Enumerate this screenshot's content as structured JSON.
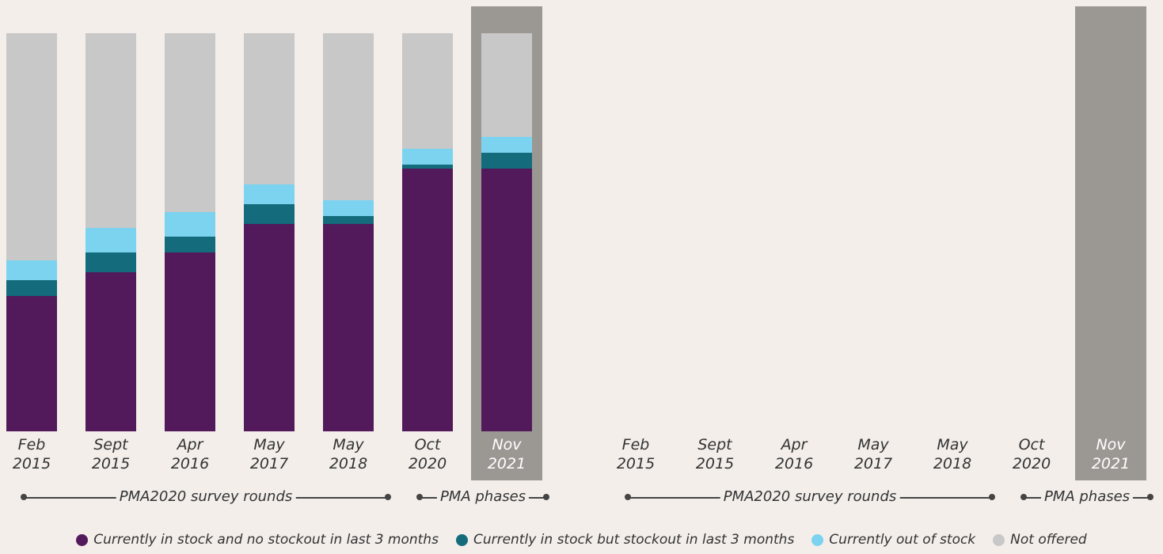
{
  "chart_data": [
    {
      "type": "bar",
      "stacked": true,
      "categories": [
        "Feb 2015",
        "Sept 2015",
        "Apr 2016",
        "May 2017",
        "May 2018",
        "Oct 2020",
        "Nov 2021"
      ],
      "series": [
        {
          "name": "Currently in stock and no stockout in last 3 months",
          "color": "#521a5a",
          "values": [
            34,
            40,
            45,
            52,
            52,
            66,
            66
          ]
        },
        {
          "name": "Currently in stock but stockout in last 3 months",
          "color": "#136b7c",
          "values": [
            4,
            5,
            4,
            5,
            2,
            1,
            4
          ]
        },
        {
          "name": "Currently out of stock",
          "color": "#7bd3f0",
          "values": [
            5,
            6,
            6,
            5,
            4,
            4,
            4
          ]
        },
        {
          "name": "Not offered",
          "color": "#c8c8c8",
          "values": [
            57,
            49,
            45,
            38,
            42,
            29,
            26
          ]
        }
      ],
      "ylim": [
        0,
        100
      ],
      "highlight_category": "Nov 2021",
      "highlight_color": "#9b9894",
      "groups": [
        {
          "label": "PMA2020 survey rounds",
          "span": [
            "Feb 2015",
            "May 2018"
          ]
        },
        {
          "label": "PMA phases",
          "span": [
            "Oct 2020",
            "Nov 2021"
          ]
        }
      ]
    },
    {
      "type": "bar",
      "stacked": true,
      "categories": [
        "Feb 2015",
        "Sept 2015",
        "Apr 2016",
        "May 2017",
        "May 2018",
        "Oct 2020",
        "Nov 2021"
      ],
      "series": [],
      "ylim": [
        0,
        100
      ],
      "highlight_category": "Nov 2021",
      "highlight_color": "#9b9894",
      "groups": [
        {
          "label": "PMA2020 survey rounds",
          "span": [
            "Feb 2015",
            "May 2018"
          ]
        },
        {
          "label": "PMA phases",
          "span": [
            "Oct 2020",
            "Nov 2021"
          ]
        }
      ]
    }
  ]
}
